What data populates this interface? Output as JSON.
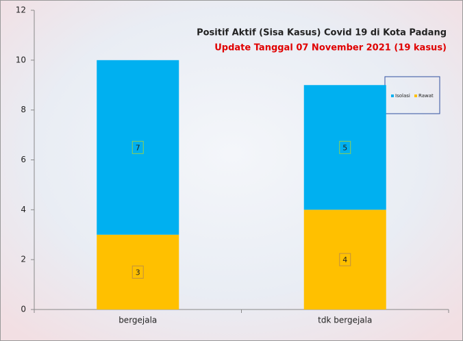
{
  "chart_data": {
    "type": "stacked_bar",
    "title": "Positif Aktif  (Sisa Kasus) Covid 19 di Kota Padang",
    "subtitle": "Update Tanggal  07 November 2021 (19 kasus)",
    "categories": [
      "bergejala",
      "tdk bergejala"
    ],
    "series": [
      {
        "name": "Isolasi",
        "color": "#00b0f0",
        "values": [
          7,
          5
        ]
      },
      {
        "name": "Rawat",
        "color": "#ffc000",
        "values": [
          3,
          4
        ]
      }
    ],
    "ylim": [
      0,
      12
    ],
    "yticks": [
      0,
      2,
      4,
      6,
      8,
      10,
      12
    ]
  }
}
